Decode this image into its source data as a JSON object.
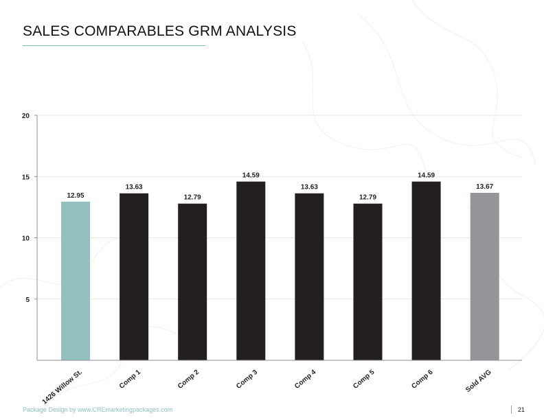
{
  "page": {
    "title": "SALES COMPARABLES GRM ANALYSIS",
    "footer_credit": "Package Design by www.CREmarketingpackages.com",
    "page_number": "21"
  },
  "colors": {
    "accent": "#7dbcb6",
    "subject_bar": "#93c0bf",
    "comp_bar": "#231f20",
    "avg_bar": "#939598",
    "axis": "#8f8f8f",
    "grid": "#e6e6e6",
    "text": "#231f20"
  },
  "chart_data": {
    "type": "bar",
    "title": "",
    "xlabel": "",
    "ylabel": "",
    "ylim": [
      0,
      20
    ],
    "y_ticks": [
      5,
      10,
      15,
      20
    ],
    "grid": true,
    "legend": "none",
    "categories": [
      "1426 Willow St.",
      "Comp 1",
      "Comp 2",
      "Comp 3",
      "Comp 4",
      "Comp 5",
      "Comp 6",
      "Sold AVG"
    ],
    "values": [
      12.95,
      13.63,
      12.79,
      14.59,
      13.63,
      12.79,
      14.59,
      13.67
    ],
    "data_labels": [
      "12.95",
      "13.63",
      "12.79",
      "14.59",
      "13.63",
      "12.79",
      "14.59",
      "13.67"
    ],
    "bar_colors": [
      "#93c0bf",
      "#231f20",
      "#231f20",
      "#231f20",
      "#231f20",
      "#231f20",
      "#231f20",
      "#939598"
    ]
  }
}
